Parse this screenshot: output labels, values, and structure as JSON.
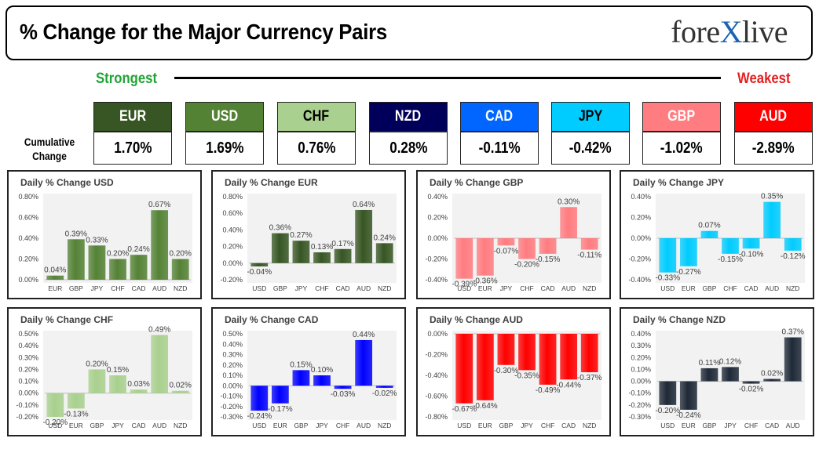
{
  "header": {
    "title": "% Change for the Major Currency Pairs",
    "logo_pre": "fore",
    "logo_x": "X",
    "logo_post": "live"
  },
  "scale": {
    "strongest_label": "Strongest",
    "weakest_label": "Weakest"
  },
  "cumulative": {
    "label_line1": "Cumulative",
    "label_line2": "Change",
    "currencies": [
      {
        "code": "EUR",
        "value": "1.70%",
        "color": "#375623",
        "text_color": "#ffffff"
      },
      {
        "code": "USD",
        "value": "1.69%",
        "color": "#548235",
        "text_color": "#ffffff"
      },
      {
        "code": "CHF",
        "value": "0.76%",
        "color": "#a9d08e",
        "text_color": "#000000"
      },
      {
        "code": "NZD",
        "value": "0.28%",
        "color": "#00005a",
        "text_color": "#ffffff"
      },
      {
        "code": "CAD",
        "value": "-0.11%",
        "color": "#0066ff",
        "text_color": "#ffffff"
      },
      {
        "code": "JPY",
        "value": "-0.42%",
        "color": "#00ccff",
        "text_color": "#000000"
      },
      {
        "code": "GBP",
        "value": "-1.02%",
        "color": "#ff7c80",
        "text_color": "#ffffff"
      },
      {
        "code": "AUD",
        "value": "-2.89%",
        "color": "#ff0000",
        "text_color": "#ffffff"
      }
    ]
  },
  "chart_data": [
    {
      "type": "bar",
      "title": "Daily % Change USD",
      "categories": [
        "EUR",
        "GBP",
        "JPY",
        "CHF",
        "CAD",
        "AUD",
        "NZD"
      ],
      "values": [
        0.04,
        0.39,
        0.33,
        0.2,
        0.24,
        0.67,
        0.2
      ],
      "labels": [
        "0.04%",
        "0.39%",
        "0.33%",
        "0.20%",
        "0.24%",
        "0.67%",
        "0.20%"
      ],
      "yticks": [
        "0.00%",
        "0.20%",
        "0.40%",
        "0.60%",
        "0.80%"
      ],
      "ylim": [
        0,
        0.8
      ],
      "color": "#548235",
      "grid": false
    },
    {
      "type": "bar",
      "title": "Daily % Change EUR",
      "categories": [
        "USD",
        "GBP",
        "JPY",
        "CHF",
        "CAD",
        "AUD",
        "NZD"
      ],
      "values": [
        -0.04,
        0.36,
        0.27,
        0.13,
        0.17,
        0.64,
        0.24
      ],
      "labels": [
        "-0.04%",
        "0.36%",
        "0.27%",
        "0.13%",
        "0.17%",
        "0.64%",
        "0.24%"
      ],
      "yticks": [
        "-0.20%",
        "0.00%",
        "0.20%",
        "0.40%",
        "0.60%",
        "0.80%"
      ],
      "ylim": [
        -0.2,
        0.8
      ],
      "color": "#375623",
      "grid": false
    },
    {
      "type": "bar",
      "title": "Daily % Change GBP",
      "categories": [
        "USD",
        "EUR",
        "JPY",
        "CHF",
        "CAD",
        "AUD",
        "NZD"
      ],
      "values": [
        -0.39,
        -0.36,
        -0.07,
        -0.2,
        -0.15,
        0.3,
        -0.11
      ],
      "labels": [
        "-0.39%",
        "-0.36%",
        "-0.07%",
        "-0.20%",
        "-0.15%",
        "0.30%",
        "-0.11%"
      ],
      "yticks": [
        "-0.40%",
        "-0.20%",
        "0.00%",
        "0.20%",
        "0.40%"
      ],
      "ylim": [
        -0.4,
        0.4
      ],
      "color": "#ff7c80",
      "grid": false
    },
    {
      "type": "bar",
      "title": "Daily % Change JPY",
      "categories": [
        "USD",
        "EUR",
        "GBP",
        "CHF",
        "CAD",
        "AUD",
        "NZD"
      ],
      "values": [
        -0.33,
        -0.27,
        0.07,
        -0.15,
        -0.1,
        0.35,
        -0.12
      ],
      "labels": [
        "-0.33%",
        "-0.27%",
        "0.07%",
        "-0.15%",
        "-0.10%",
        "0.35%",
        "-0.12%"
      ],
      "yticks": [
        "-0.40%",
        "-0.20%",
        "0.00%",
        "0.20%",
        "0.40%"
      ],
      "ylim": [
        -0.4,
        0.4
      ],
      "color": "#00ccff",
      "grid": false
    },
    {
      "type": "bar",
      "title": "Daily % Change CHF",
      "categories": [
        "USD",
        "EUR",
        "GBP",
        "JPY",
        "CAD",
        "AUD",
        "NZD"
      ],
      "values": [
        -0.2,
        -0.13,
        0.2,
        0.15,
        0.03,
        0.49,
        0.02
      ],
      "labels": [
        "-0.20%",
        "-0.13%",
        "0.20%",
        "0.15%",
        "0.03%",
        "0.49%",
        "0.02%"
      ],
      "yticks": [
        "-0.20%",
        "-0.10%",
        "0.00%",
        "0.10%",
        "0.20%",
        "0.30%",
        "0.40%",
        "0.50%"
      ],
      "ylim": [
        -0.2,
        0.5
      ],
      "color": "#a9d08e",
      "grid": false
    },
    {
      "type": "bar",
      "title": "Daily % Change CAD",
      "categories": [
        "USD",
        "EUR",
        "GBP",
        "JPY",
        "CHF",
        "AUD",
        "NZD"
      ],
      "values": [
        -0.24,
        -0.17,
        0.15,
        0.1,
        -0.03,
        0.44,
        -0.02
      ],
      "labels": [
        "-0.24%",
        "-0.17%",
        "0.15%",
        "0.10%",
        "-0.03%",
        "0.44%",
        "-0.02%"
      ],
      "yticks": [
        "-0.30%",
        "-0.20%",
        "-0.10%",
        "0.00%",
        "0.10%",
        "0.20%",
        "0.30%",
        "0.40%",
        "0.50%"
      ],
      "ylim": [
        -0.3,
        0.5
      ],
      "color": "#0000ff",
      "grid": false
    },
    {
      "type": "bar",
      "title": "Daily % Change AUD",
      "categories": [
        "USD",
        "EUR",
        "GBP",
        "JPY",
        "CHF",
        "CAD",
        "NZD"
      ],
      "values": [
        -0.67,
        -0.64,
        -0.3,
        -0.35,
        -0.49,
        -0.44,
        -0.37
      ],
      "labels": [
        "-0.67%",
        "-0.64%",
        "-0.30%",
        "-0.35%",
        "-0.49%",
        "-0.44%",
        "-0.37%"
      ],
      "yticks": [
        "-0.80%",
        "-0.60%",
        "-0.40%",
        "-0.20%",
        "0.00%"
      ],
      "ylim": [
        -0.8,
        0
      ],
      "color": "#ff0000",
      "grid": false
    },
    {
      "type": "bar",
      "title": "Daily % Change NZD",
      "categories": [
        "USD",
        "EUR",
        "GBP",
        "JPY",
        "CHF",
        "CAD",
        "AUD"
      ],
      "values": [
        -0.2,
        -0.24,
        0.11,
        0.12,
        -0.02,
        0.02,
        0.37
      ],
      "labels": [
        "-0.20%",
        "-0.24%",
        "0.11%",
        "0.12%",
        "-0.02%",
        "0.02%",
        "0.37%"
      ],
      "yticks": [
        "-0.30%",
        "-0.20%",
        "-0.10%",
        "0.00%",
        "0.10%",
        "0.20%",
        "0.30%",
        "0.40%"
      ],
      "ylim": [
        -0.3,
        0.4
      ],
      "color": "#1f2937",
      "grid": false
    }
  ]
}
